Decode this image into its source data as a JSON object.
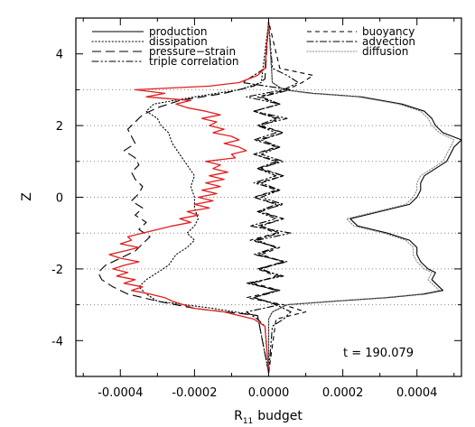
{
  "chart_data": {
    "type": "line",
    "title": "",
    "xlabel": "R",
    "xlabel_sub": "11",
    "xlabel_suffix": "budget",
    "ylabel": "Z",
    "xlim": [
      -0.00052,
      0.00052
    ],
    "ylim": [
      -5,
      5
    ],
    "xticks": [
      -0.0004,
      -0.0002,
      0.0,
      0.0002,
      0.0004
    ],
    "xtick_labels": [
      "-0.0004",
      "-0.0002",
      "0.0000",
      "0.0002",
      "0.0004"
    ],
    "yticks": [
      -4,
      -2,
      0,
      2,
      4
    ],
    "ytick_labels": [
      "-4",
      "-2",
      "0",
      "2",
      "4"
    ],
    "hlines": [
      -3,
      -2,
      -1,
      0,
      1,
      2,
      3
    ],
    "annotation": "t = 190.079",
    "legend": {
      "position": "top",
      "left": [
        {
          "name": "production",
          "style": "solid"
        },
        {
          "name": "dissipation",
          "style": "dotted"
        },
        {
          "name": "pressure−strain",
          "style": "longdash"
        },
        {
          "name": "triple correlation",
          "style": "dashdotdot"
        }
      ],
      "right": [
        {
          "name": "buoyancy",
          "style": "dashed"
        },
        {
          "name": "advection",
          "style": "dashdot"
        },
        {
          "name": "diffusion",
          "style": "dotted-gray"
        }
      ]
    },
    "series": [
      {
        "name": "production",
        "style": "solid",
        "color": "#000000",
        "z": [
          -4.9,
          -3.4,
          -3.2,
          -3.0,
          -2.9,
          -2.8,
          -2.7,
          -2.6,
          -2.5,
          -2.3,
          -2.1,
          -2.0,
          -1.8,
          -1.6,
          -1.4,
          -1.2,
          -1.0,
          -0.8,
          -0.6,
          -0.4,
          -0.2,
          0.0,
          0.2,
          0.4,
          0.6,
          0.8,
          1.0,
          1.2,
          1.4,
          1.6,
          1.8,
          2.0,
          2.2,
          2.4,
          2.6,
          2.8,
          2.9,
          3.0,
          3.2,
          4.9
        ],
        "x": [
          0.0,
          0.0,
          1e-05,
          5e-05,
          0.00018,
          0.00032,
          0.00042,
          0.00047,
          0.00046,
          0.00044,
          0.00045,
          0.00043,
          0.00041,
          0.0004,
          0.0004,
          0.00038,
          0.00032,
          0.00024,
          0.00022,
          0.0003,
          0.00038,
          0.0004,
          0.00041,
          0.00041,
          0.00042,
          0.00045,
          0.00048,
          0.00049,
          0.0005,
          0.00052,
          0.00047,
          0.00045,
          0.00044,
          0.00042,
          0.00036,
          0.00025,
          0.00012,
          4e-05,
          1e-05,
          0.0
        ]
      },
      {
        "name": "dissipation",
        "style": "dotted",
        "color": "#000000",
        "z": [
          -4.9,
          -3.3,
          -3.1,
          -2.9,
          -2.7,
          -2.5,
          -2.3,
          -2.1,
          -1.9,
          -1.6,
          -1.4,
          -1.2,
          -1.0,
          -0.8,
          -0.6,
          -0.3,
          0.0,
          0.3,
          0.6,
          0.9,
          1.2,
          1.5,
          1.8,
          2.0,
          2.2,
          2.4,
          2.6,
          2.8,
          3.0,
          3.2,
          4.9
        ],
        "x": [
          0.0,
          -3e-05,
          -0.00015,
          -0.0003,
          -0.00033,
          -0.00035,
          -0.00033,
          -0.0003,
          -0.00027,
          -0.00025,
          -0.00022,
          -0.0002,
          -0.00022,
          -0.0002,
          -0.00019,
          -0.0002,
          -0.0002,
          -0.00021,
          -0.0002,
          -0.00022,
          -0.00024,
          -0.00026,
          -0.00027,
          -0.00029,
          -0.0003,
          -0.00033,
          -0.00031,
          -0.0002,
          -8e-05,
          -2e-05,
          0.0
        ]
      },
      {
        "name": "pressure−strain",
        "style": "longdash",
        "color": "#000000",
        "z": [
          -4.9,
          -3.3,
          -3.1,
          -2.9,
          -2.7,
          -2.5,
          -2.3,
          -2.1,
          -1.9,
          -1.7,
          -1.5,
          -1.3,
          -1.1,
          -0.9,
          -0.7,
          -0.5,
          -0.3,
          -0.1,
          0.1,
          0.3,
          0.5,
          0.7,
          0.9,
          1.1,
          1.3,
          1.5,
          1.7,
          1.9,
          2.1,
          2.3,
          2.5,
          2.7,
          2.9,
          3.1,
          3.3,
          4.9
        ],
        "x": [
          0.0,
          -3e-05,
          -0.0002,
          -0.0003,
          -0.00038,
          -0.00042,
          -0.00045,
          -0.00046,
          -0.00044,
          -0.0004,
          -0.00036,
          -0.00034,
          -0.00032,
          -0.00035,
          -0.00033,
          -0.00036,
          -0.00034,
          -0.00037,
          -0.00035,
          -0.00034,
          -0.00036,
          -0.00037,
          -0.00035,
          -0.00036,
          -0.00039,
          -0.00036,
          -0.00037,
          -0.00038,
          -0.00036,
          -0.00034,
          -0.0003,
          -0.00024,
          -0.00012,
          -4e-05,
          -1e-05,
          0.0
        ]
      },
      {
        "name": "triple correlation",
        "style": "dashdotdot",
        "color": "#000000",
        "z": [
          -4.9,
          -3.6,
          -3.4,
          -3.2,
          -3.0,
          -2.8,
          -2.6,
          -2.4,
          -2.2,
          -2.0,
          -1.8,
          -1.6,
          -1.4,
          -1.2,
          -1.0,
          -0.8,
          -0.6,
          -0.4,
          -0.2,
          0.0,
          0.2,
          0.4,
          0.6,
          0.8,
          1.0,
          1.2,
          1.4,
          1.6,
          1.8,
          2.0,
          2.2,
          2.4,
          2.6,
          2.8,
          3.0,
          3.2,
          3.4,
          3.6,
          4.9
        ],
        "x": [
          0.0,
          1e-05,
          4e-05,
          6e-05,
          2e-05,
          -4e-05,
          3e-05,
          -6e-05,
          4e-05,
          -3e-05,
          5e-05,
          -4e-05,
          2e-05,
          -3e-05,
          6e-05,
          -5e-05,
          2e-05,
          -3e-05,
          4e-05,
          -2e-05,
          3e-05,
          -4e-05,
          2e-05,
          -3e-05,
          4e-05,
          -2e-05,
          3e-05,
          -4e-05,
          2e-05,
          -3e-05,
          5e-05,
          -4e-05,
          3e-05,
          -6e-05,
          4e-05,
          8e-05,
          5e-05,
          1e-05,
          0.0
        ]
      },
      {
        "name": "buoyancy",
        "style": "dashed",
        "color": "#000000",
        "z": [
          -4.9,
          -3.4,
          -3.2,
          -3.0,
          -2.8,
          -2.6,
          -2.4,
          -2.2,
          -2.0,
          -1.8,
          -1.6,
          -1.4,
          -1.2,
          -1.0,
          -0.8,
          -0.6,
          -0.4,
          -0.2,
          0.0,
          0.2,
          0.4,
          0.6,
          0.8,
          1.0,
          1.2,
          1.4,
          1.6,
          1.8,
          2.0,
          2.2,
          2.4,
          2.6,
          2.8,
          3.0,
          3.2,
          3.4,
          3.6,
          4.9
        ],
        "x": [
          0.0,
          2e-05,
          0.0001,
          4e-05,
          -6e-05,
          3e-05,
          -4e-05,
          2e-05,
          -3e-05,
          4e-05,
          -2e-05,
          3e-05,
          -5e-05,
          2e-05,
          -3e-05,
          4e-05,
          -2e-05,
          3e-05,
          -4e-05,
          2e-05,
          -3e-05,
          4e-05,
          -2e-05,
          3e-05,
          -4e-05,
          2e-05,
          -3e-05,
          4e-05,
          -2e-05,
          3e-05,
          -4e-05,
          3e-05,
          -3e-05,
          5e-05,
          9e-05,
          0.00012,
          3e-05,
          0.0
        ]
      },
      {
        "name": "advection",
        "style": "dashdot",
        "color": "#000000",
        "z": [
          -4.9,
          -3.6,
          -3.4,
          -3.2,
          -3.0,
          -2.8,
          -2.6,
          -2.4,
          -2.2,
          -2.0,
          -1.8,
          -1.6,
          -1.4,
          -1.2,
          -1.0,
          -0.8,
          -0.6,
          -0.4,
          -0.2,
          0.0,
          0.2,
          0.4,
          0.6,
          0.8,
          1.0,
          1.2,
          1.4,
          1.6,
          1.8,
          2.0,
          2.2,
          2.4,
          2.6,
          2.8,
          3.0,
          3.2,
          3.4,
          3.6,
          4.9
        ],
        "x": [
          0.0,
          -1e-05,
          -3e-05,
          -6e-05,
          3e-05,
          -4e-05,
          2e-05,
          -5e-05,
          3e-05,
          -2e-05,
          4e-05,
          -3e-05,
          2e-05,
          -4e-05,
          3e-05,
          -2e-05,
          4e-05,
          -3e-05,
          2e-05,
          -4e-05,
          3e-05,
          -2e-05,
          4e-05,
          -3e-05,
          2e-05,
          -4e-05,
          3e-05,
          -2e-05,
          4e-05,
          -3e-05,
          2e-05,
          -4e-05,
          3e-05,
          -2e-05,
          6e-05,
          -7e-05,
          -4e-05,
          -1e-05,
          0.0
        ]
      },
      {
        "name": "diffusion",
        "style": "dotted-gray",
        "color": "#888888",
        "z": [
          -4.9,
          -3.4,
          -3.2,
          -3.0,
          -2.9,
          -2.8,
          -2.7,
          -2.6,
          -2.5,
          -2.3,
          -2.1,
          -2.0,
          -1.8,
          -1.6,
          -1.4,
          -1.2,
          -1.0,
          -0.8,
          -0.6,
          -0.4,
          -0.2,
          0.0,
          0.2,
          0.4,
          0.6,
          0.8,
          1.0,
          1.2,
          1.4,
          1.6,
          1.8,
          2.0,
          2.2,
          2.4,
          2.6,
          2.8,
          2.9,
          3.0,
          3.2,
          4.9
        ],
        "x": [
          0.0,
          0.0,
          1e-05,
          5e-05,
          0.00017,
          0.00031,
          0.00041,
          0.00046,
          0.00045,
          0.00043,
          0.00044,
          0.00042,
          0.0004,
          0.00039,
          0.00039,
          0.00037,
          0.00031,
          0.00023,
          0.00021,
          0.00029,
          0.00037,
          0.00039,
          0.0004,
          0.0004,
          0.00041,
          0.00044,
          0.00047,
          0.00048,
          0.00049,
          0.0005,
          0.00046,
          0.00044,
          0.00043,
          0.00041,
          0.00035,
          0.00024,
          0.00011,
          4e-05,
          1e-05,
          0.0
        ]
      },
      {
        "name": "",
        "style": "solid",
        "color": "#e02020",
        "z": [
          -4.9,
          -3.6,
          -3.4,
          -3.2,
          -3.1,
          -3.0,
          -2.9,
          -2.8,
          -2.7,
          -2.6,
          -2.5,
          -2.4,
          -2.3,
          -2.2,
          -2.1,
          -2.0,
          -1.9,
          -1.8,
          -1.7,
          -1.6,
          -1.5,
          -1.4,
          -1.3,
          -1.2,
          -1.1,
          -1.0,
          -0.9,
          -0.8,
          -0.7,
          -0.6,
          -0.5,
          -0.4,
          -0.3,
          -0.2,
          -0.1,
          0.0,
          0.1,
          0.2,
          0.3,
          0.4,
          0.5,
          0.6,
          0.7,
          0.8,
          0.9,
          1.0,
          1.1,
          1.2,
          1.3,
          1.4,
          1.5,
          1.6,
          1.7,
          1.8,
          1.9,
          2.0,
          2.1,
          2.2,
          2.3,
          2.4,
          2.5,
          2.6,
          2.7,
          2.8,
          2.9,
          3.0,
          3.1,
          3.2,
          3.4,
          3.6,
          4.9
        ],
        "x": [
          0.0,
          -1e-05,
          -4e-05,
          -0.00012,
          -0.0002,
          -0.00023,
          -0.00026,
          -0.00028,
          -0.00032,
          -0.00037,
          -0.00034,
          -0.00039,
          -0.00036,
          -0.00041,
          -0.00038,
          -0.00042,
          -0.00039,
          -0.00035,
          -0.0004,
          -0.00043,
          -0.00039,
          -0.00035,
          -0.0004,
          -0.00037,
          -0.00038,
          -0.00034,
          -0.0003,
          -0.00026,
          -0.00021,
          -0.00024,
          -0.00019,
          -0.00022,
          -0.00016,
          -0.0002,
          -0.00015,
          -0.00019,
          -0.00014,
          -0.00018,
          -0.00013,
          -0.00017,
          -0.00012,
          -0.00016,
          -0.00011,
          -0.00015,
          -0.00013,
          -0.00017,
          -9e-05,
          -0.0001,
          -6e-05,
          -8e-05,
          -0.00012,
          -8e-05,
          -0.0001,
          -0.00015,
          -0.00012,
          -0.00016,
          -0.00014,
          -0.00018,
          -0.00013,
          -0.00017,
          -0.00022,
          -0.00025,
          -0.00021,
          -0.00033,
          -0.00028,
          -0.00036,
          -0.00016,
          -8e-05,
          -3e-05,
          -1e-05,
          0.0
        ]
      }
    ]
  }
}
